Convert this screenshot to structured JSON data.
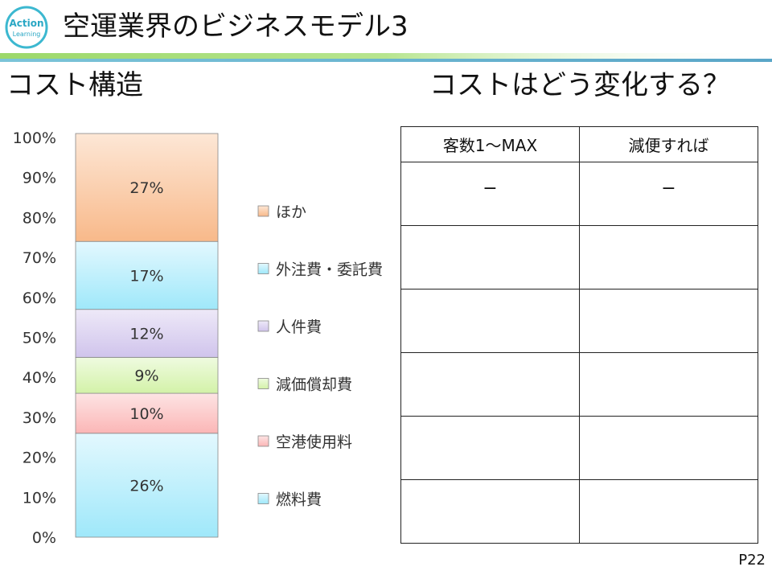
{
  "header": {
    "logo_line1": "Action",
    "logo_line2": "Learning",
    "title": "空運業界のビジネスモデル3"
  },
  "sections": {
    "left_title": "コスト構造",
    "right_title": "コストはどう変化する？"
  },
  "colors": {
    "header_line_top": "#9cd86a",
    "header_line_bottom": "#7bc4d8"
  },
  "chart_data": {
    "type": "bar",
    "stacked": true,
    "normalized_percent": true,
    "categories": [
      ""
    ],
    "ylim": [
      0,
      100
    ],
    "yticks": [
      "0%",
      "10%",
      "20%",
      "30%",
      "40%",
      "50%",
      "60%",
      "70%",
      "80%",
      "90%",
      "100%"
    ],
    "grid": false,
    "legend_position": "right",
    "series": [
      {
        "name": "燃料費",
        "values": [
          26
        ],
        "label": "26%",
        "color": "#9fe8fa",
        "gradient_top": "#e3f8fe"
      },
      {
        "name": "空港使用料",
        "values": [
          10
        ],
        "label": "10%",
        "color": "#fbb6b6",
        "gradient_top": "#fde4e4"
      },
      {
        "name": "減価償却費",
        "values": [
          9
        ],
        "label": "9%",
        "color": "#d3f2a8",
        "gradient_top": "#effbe0"
      },
      {
        "name": "人件費",
        "values": [
          12
        ],
        "label": "12%",
        "color": "#d0c4ec",
        "gradient_top": "#eee9f8"
      },
      {
        "name": "外注費・委託費",
        "values": [
          17
        ],
        "label": "17%",
        "color": "#9fe8fa",
        "gradient_top": "#e3f8fe"
      },
      {
        "name": "ほか",
        "values": [
          27
        ],
        "label": "27%",
        "color": "#f8b98a",
        "gradient_top": "#fde7d6"
      }
    ]
  },
  "table": {
    "headers": [
      "客数1〜MAX",
      "減便すれば"
    ],
    "rows": [
      [
        "−",
        "−"
      ],
      [
        "",
        ""
      ],
      [
        "",
        ""
      ],
      [
        "",
        ""
      ],
      [
        "",
        ""
      ],
      [
        "",
        ""
      ]
    ]
  },
  "footer": {
    "page_number": "P22"
  }
}
